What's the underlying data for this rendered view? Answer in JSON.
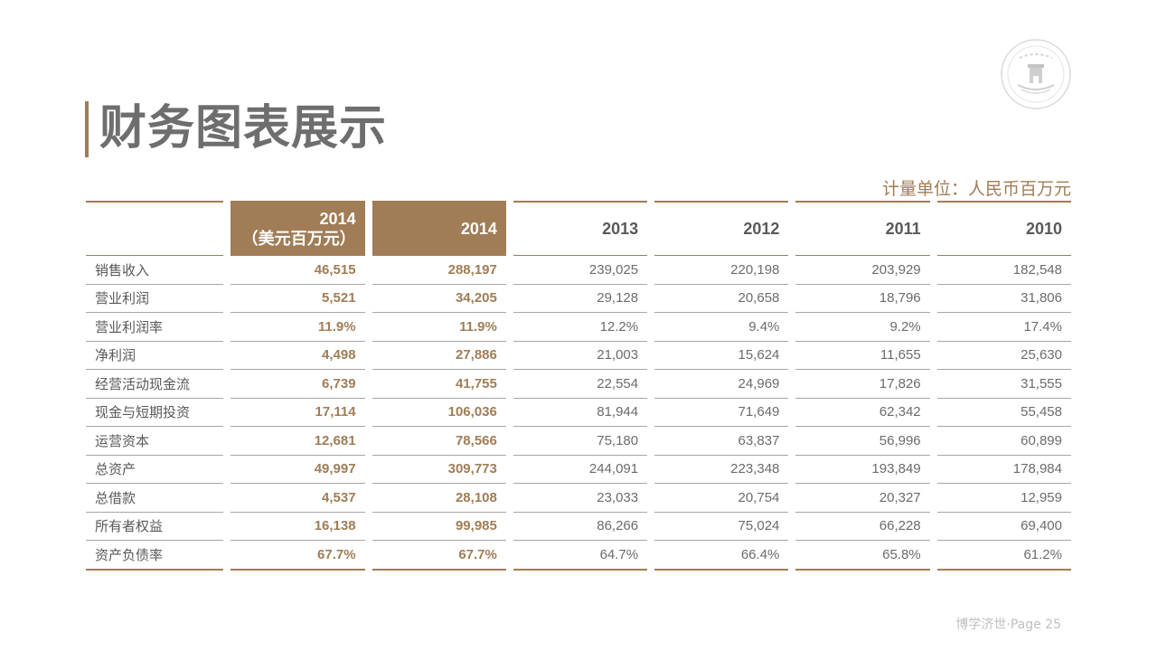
{
  "title": "财务图表展示",
  "unit": "计量单位：人民币百万元",
  "footer": "博学济世·Page 25",
  "colors": {
    "accent": "#a07d56",
    "text": "#595959"
  },
  "table": {
    "headers": [
      "",
      "2014\n（美元百万元）",
      "2014",
      "2013",
      "2012",
      "2011",
      "2010"
    ],
    "rows": [
      {
        "label": "销售收入",
        "values": [
          "46,515",
          "288,197",
          "239,025",
          "220,198",
          "203,929",
          "182,548"
        ]
      },
      {
        "label": "营业利润",
        "values": [
          "5,521",
          "34,205",
          "29,128",
          "20,658",
          "18,796",
          "31,806"
        ]
      },
      {
        "label": "营业利润率",
        "values": [
          "11.9%",
          "11.9%",
          "12.2%",
          "9.4%",
          "9.2%",
          "17.4%"
        ]
      },
      {
        "label": "净利润",
        "values": [
          "4,498",
          "27,886",
          "21,003",
          "15,624",
          "11,655",
          "25,630"
        ]
      },
      {
        "label": "经营活动现金流",
        "values": [
          "6,739",
          "41,755",
          "22,554",
          "24,969",
          "17,826",
          "31,555"
        ]
      },
      {
        "label": "现金与短期投资",
        "values": [
          "17,114",
          "106,036",
          "81,944",
          "71,649",
          "62,342",
          "55,458"
        ]
      },
      {
        "label": "运营资本",
        "values": [
          "12,681",
          "78,566",
          "75,180",
          "63,837",
          "56,996",
          "60,899"
        ]
      },
      {
        "label": "总资产",
        "values": [
          "49,997",
          "309,773",
          "244,091",
          "223,348",
          "193,849",
          "178,984"
        ]
      },
      {
        "label": "总借款",
        "values": [
          "4,537",
          "28,108",
          "23,033",
          "20,754",
          "20,327",
          "12,959"
        ]
      },
      {
        "label": "所有者权益",
        "values": [
          "16,138",
          "99,985",
          "86,266",
          "75,024",
          "66,228",
          "69,400"
        ]
      },
      {
        "label": "资产负债率",
        "values": [
          "67.7%",
          "67.7%",
          "64.7%",
          "66.4%",
          "65.8%",
          "61.2%"
        ]
      }
    ]
  },
  "icons": {
    "logo": "university-seal-logo"
  }
}
